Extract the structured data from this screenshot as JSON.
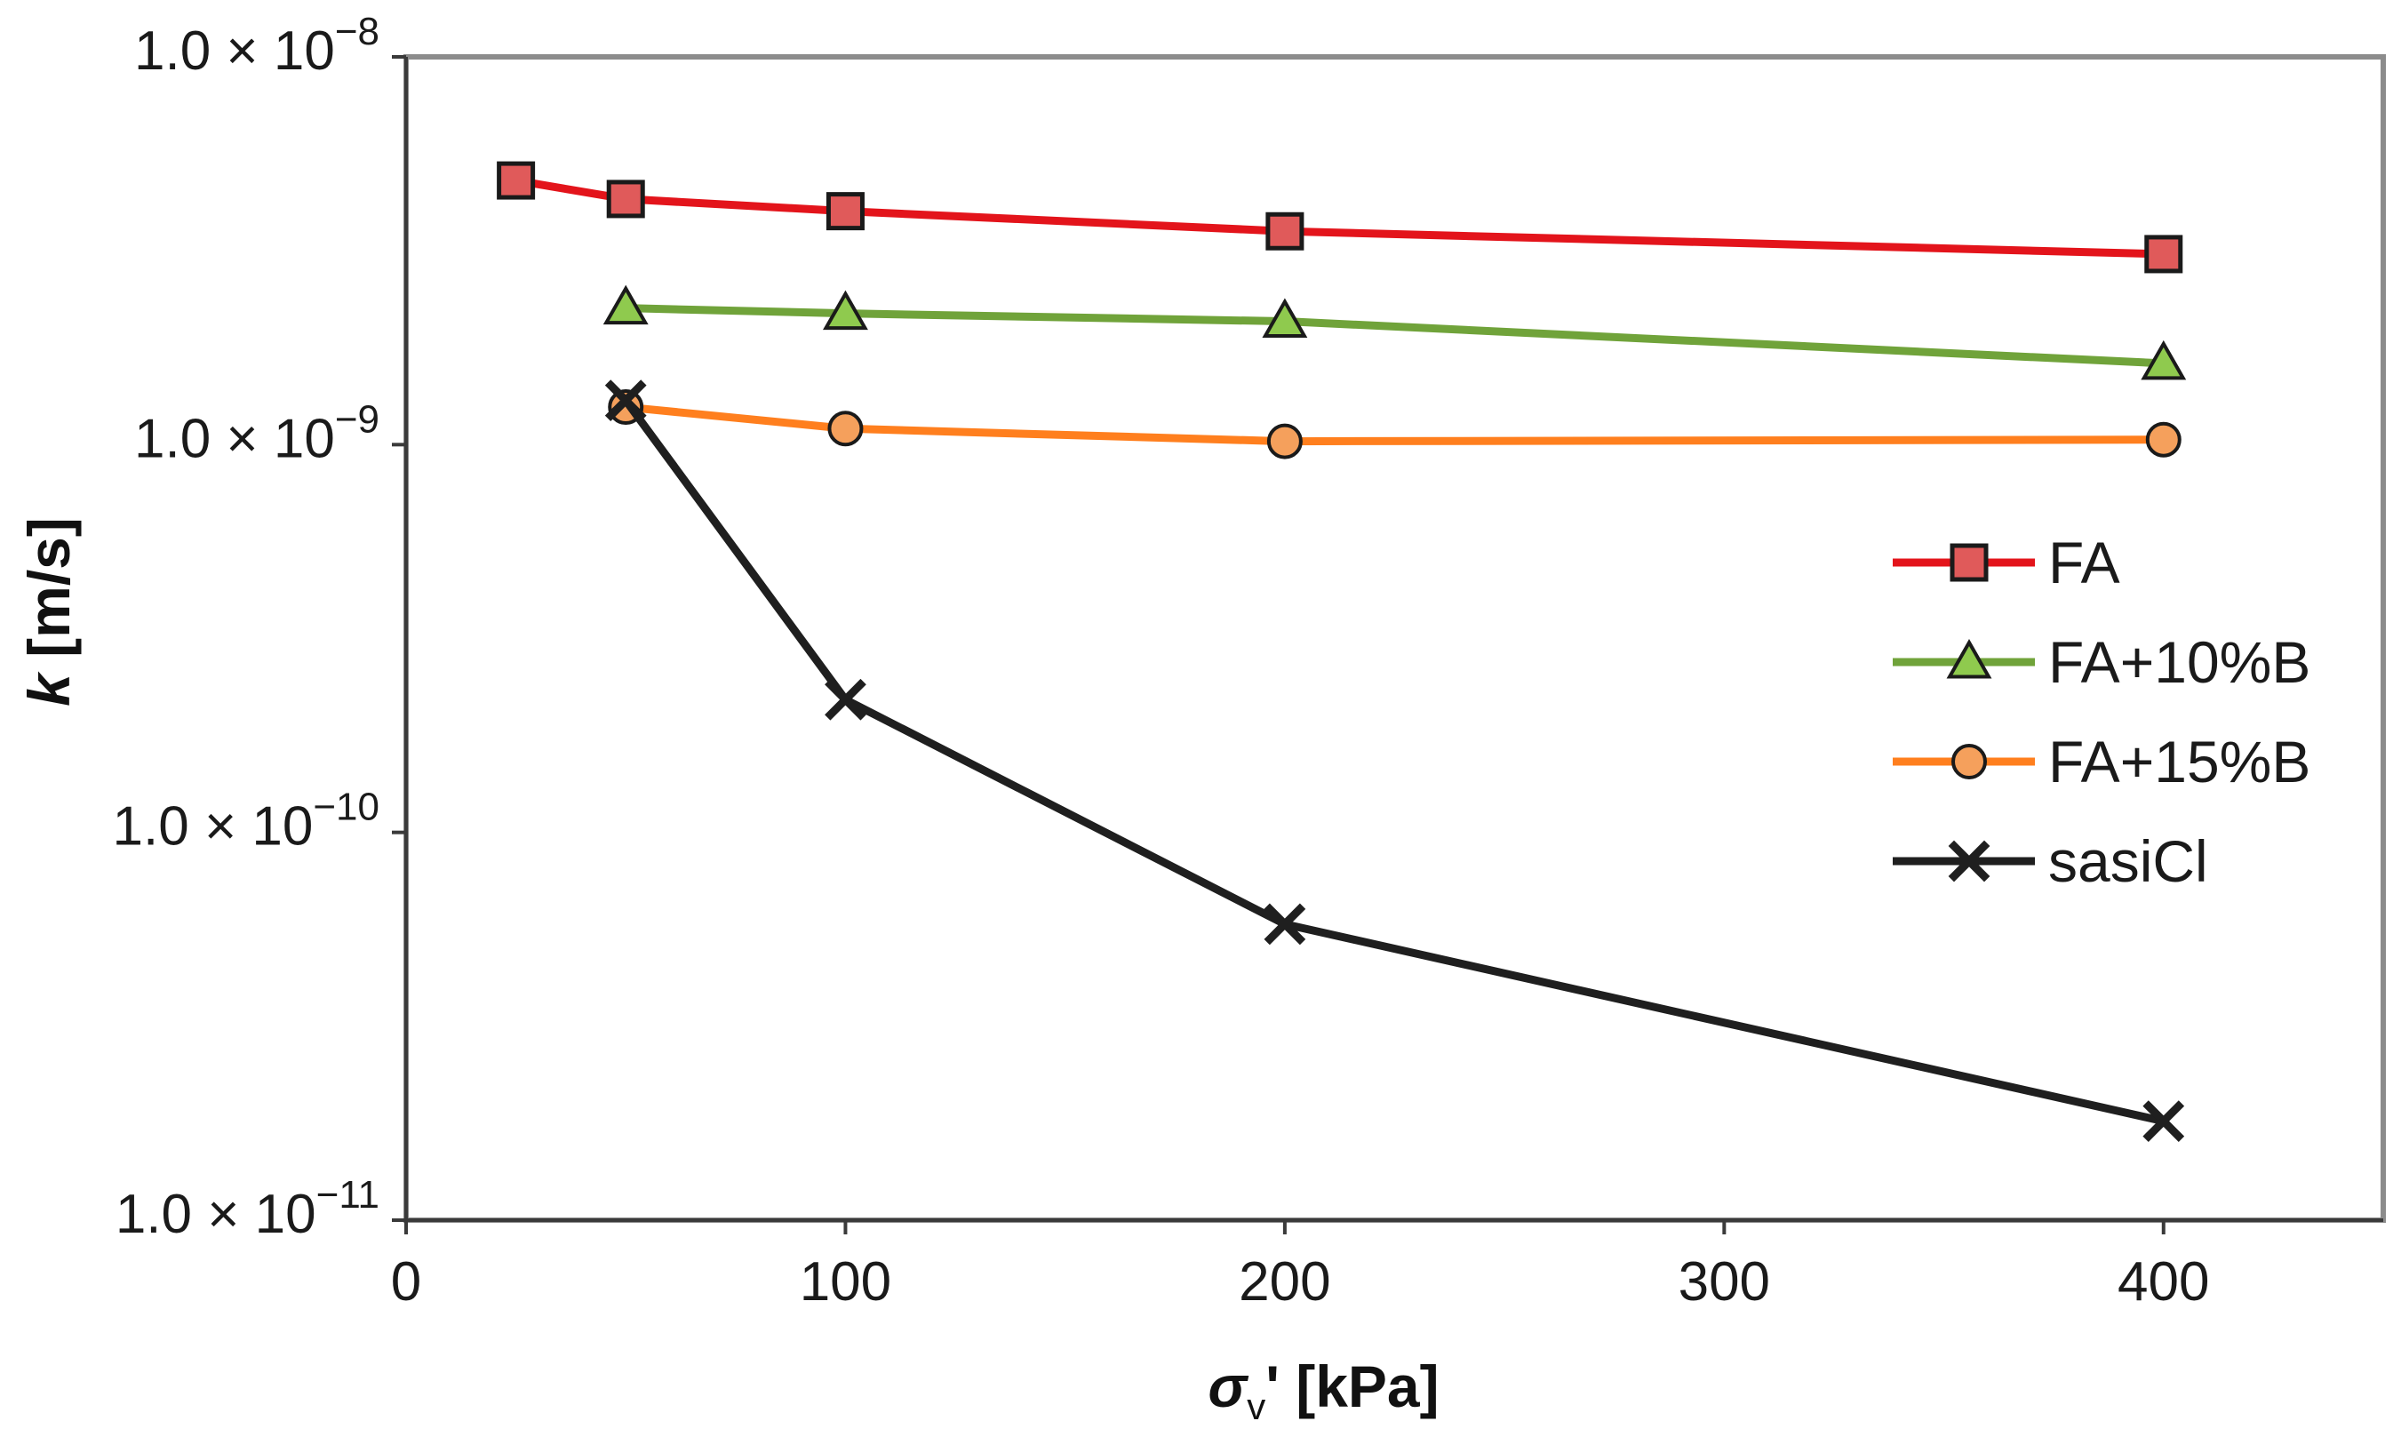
{
  "chart_data": {
    "type": "line",
    "title": "",
    "xlabel": {
      "symbol": "σ",
      "subscript": "v",
      "rest": "' [kPa]"
    },
    "ylabel": {
      "symbol": "k",
      "rest": " [m/s]"
    },
    "xlim": [
      0,
      450
    ],
    "xticks": [
      0,
      100,
      200,
      300,
      400
    ],
    "yscale": "log",
    "ylim": [
      1e-11,
      1e-08
    ],
    "yticks": [
      {
        "value": 1e-08,
        "base": "1.0 × 10",
        "exp": "−8"
      },
      {
        "value": 1e-09,
        "base": "1.0 × 10",
        "exp": "−9"
      },
      {
        "value": 1e-10,
        "base": "1.0 × 10",
        "exp": "−10"
      },
      {
        "value": 1e-11,
        "base": "1.0 × 10",
        "exp": "−11"
      }
    ],
    "grid": false,
    "legend_position": "right",
    "series": [
      {
        "name": "FA",
        "color": "#e3141b",
        "marker": "square",
        "marker_fill": "#e05a5a",
        "x": [
          25,
          50,
          100,
          200,
          400
        ],
        "y": [
          4.8e-09,
          4.3e-09,
          4e-09,
          3.55e-09,
          3.1e-09
        ]
      },
      {
        "name": "FA+10%B",
        "color": "#70a33a",
        "marker": "triangle",
        "marker_fill": "#8fca4e",
        "x": [
          50,
          100,
          200,
          400
        ],
        "y": [
          2.25e-09,
          2.18e-09,
          2.08e-09,
          1.62e-09
        ]
      },
      {
        "name": "FA+15%B",
        "color": "#ff7f1e",
        "marker": "circle",
        "marker_fill": "#f5a05c",
        "x": [
          50,
          100,
          200,
          400
        ],
        "y": [
          1.25e-09,
          1.1e-09,
          1.02e-09,
          1.03e-09
        ]
      },
      {
        "name": "sasiCl",
        "color": "#1f1f1f",
        "marker": "x",
        "marker_fill": "#1f1f1f",
        "x": [
          50,
          100,
          200,
          400
        ],
        "y": [
          1.3e-09,
          2.2e-10,
          5.8e-11,
          1.8e-11
        ]
      }
    ]
  }
}
